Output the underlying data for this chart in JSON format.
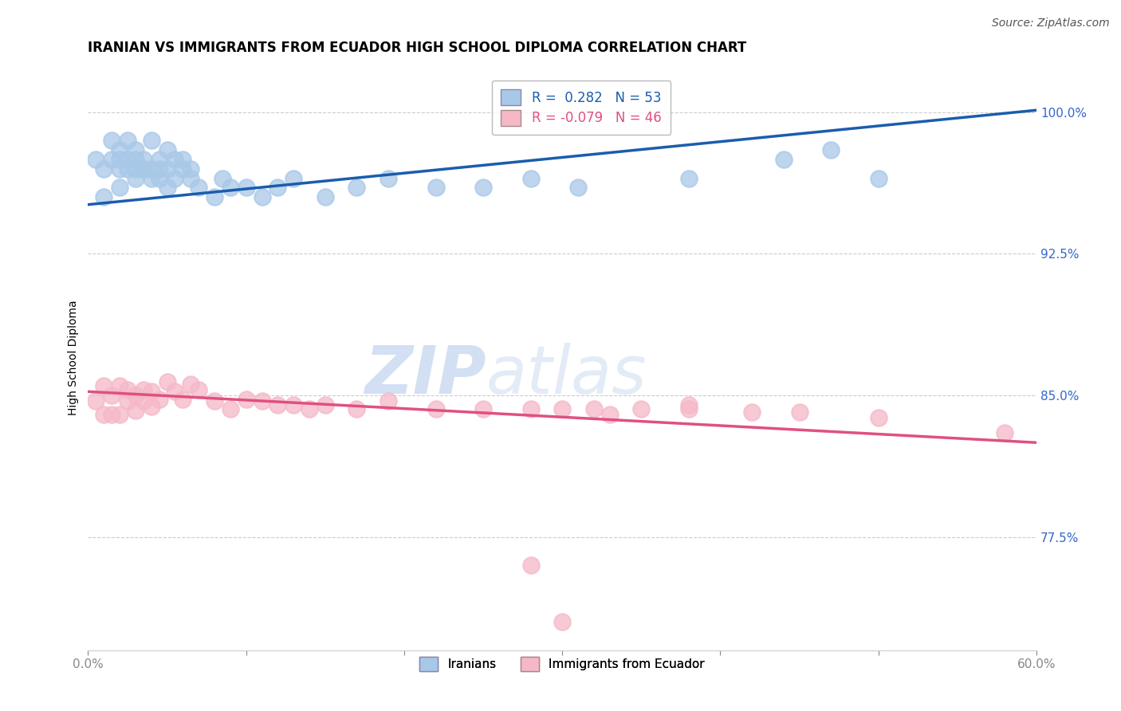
{
  "title": "IRANIAN VS IMMIGRANTS FROM ECUADOR HIGH SCHOOL DIPLOMA CORRELATION CHART",
  "source_text": "Source: ZipAtlas.com",
  "ylabel": "High School Diploma",
  "xmin": 0.0,
  "xmax": 0.6,
  "ymin": 0.715,
  "ymax": 1.025,
  "yticks": [
    0.775,
    0.85,
    0.925,
    1.0
  ],
  "ytick_labels": [
    "77.5%",
    "85.0%",
    "92.5%",
    "100.0%"
  ],
  "xticks": [
    0.0,
    0.1,
    0.2,
    0.3,
    0.4,
    0.5,
    0.6
  ],
  "xtick_labels": [
    "0.0%",
    "",
    "",
    "",
    "",
    "",
    "60.0%"
  ],
  "blue_scatter_color": "#A8C8E8",
  "blue_line_color": "#1A5DAD",
  "pink_scatter_color": "#F5B8C8",
  "pink_line_color": "#E05080",
  "tick_label_color": "#3366CC",
  "background_color": "#FFFFFF",
  "grid_color": "#CCCCCC",
  "watermark_color": "#D0DCF0",
  "legend_box_color": "#AAAAAA",
  "iranians_x": [
    0.005,
    0.01,
    0.015,
    0.015,
    0.02,
    0.02,
    0.02,
    0.025,
    0.025,
    0.03,
    0.03,
    0.03,
    0.035,
    0.035,
    0.04,
    0.04,
    0.045,
    0.045,
    0.05,
    0.05,
    0.055,
    0.06,
    0.065,
    0.065,
    0.07,
    0.08,
    0.085,
    0.09,
    0.1,
    0.11,
    0.12,
    0.13,
    0.15,
    0.17,
    0.19,
    0.22,
    0.25,
    0.28,
    0.31,
    0.38,
    0.44,
    0.47,
    0.5,
    0.01,
    0.02,
    0.025,
    0.03,
    0.035,
    0.04,
    0.045,
    0.05,
    0.055,
    0.06
  ],
  "iranians_y": [
    0.975,
    0.97,
    0.985,
    0.975,
    0.98,
    0.975,
    0.97,
    0.975,
    0.97,
    0.975,
    0.97,
    0.965,
    0.975,
    0.97,
    0.97,
    0.965,
    0.97,
    0.965,
    0.97,
    0.96,
    0.965,
    0.975,
    0.965,
    0.97,
    0.96,
    0.955,
    0.965,
    0.96,
    0.96,
    0.955,
    0.96,
    0.965,
    0.955,
    0.96,
    0.965,
    0.96,
    0.96,
    0.965,
    0.96,
    0.965,
    0.975,
    0.98,
    0.965,
    0.955,
    0.96,
    0.985,
    0.98,
    0.97,
    0.985,
    0.975,
    0.98,
    0.975,
    0.97
  ],
  "ecuador_x": [
    0.005,
    0.01,
    0.01,
    0.015,
    0.015,
    0.02,
    0.02,
    0.025,
    0.025,
    0.03,
    0.03,
    0.035,
    0.035,
    0.04,
    0.04,
    0.045,
    0.05,
    0.055,
    0.06,
    0.065,
    0.07,
    0.08,
    0.09,
    0.1,
    0.11,
    0.12,
    0.13,
    0.14,
    0.15,
    0.17,
    0.19,
    0.22,
    0.25,
    0.28,
    0.3,
    0.32,
    0.35,
    0.38,
    0.42,
    0.45,
    0.5,
    0.28,
    0.3,
    0.33,
    0.38,
    0.58
  ],
  "ecuador_y": [
    0.847,
    0.855,
    0.84,
    0.85,
    0.84,
    0.855,
    0.84,
    0.853,
    0.847,
    0.85,
    0.842,
    0.853,
    0.847,
    0.852,
    0.844,
    0.848,
    0.857,
    0.852,
    0.848,
    0.856,
    0.853,
    0.847,
    0.843,
    0.848,
    0.847,
    0.845,
    0.845,
    0.843,
    0.845,
    0.843,
    0.847,
    0.843,
    0.843,
    0.843,
    0.843,
    0.843,
    0.843,
    0.843,
    0.841,
    0.841,
    0.838,
    0.76,
    0.73,
    0.84,
    0.845,
    0.83
  ],
  "blue_line_x0": 0.0,
  "blue_line_y0": 0.951,
  "blue_line_x1": 0.6,
  "blue_line_y1": 1.001,
  "pink_line_x0": 0.0,
  "pink_line_y0": 0.852,
  "pink_line_x1": 0.6,
  "pink_line_y1": 0.825,
  "title_fontsize": 12,
  "axis_label_fontsize": 10,
  "tick_fontsize": 11,
  "legend_fontsize": 12,
  "source_fontsize": 10
}
